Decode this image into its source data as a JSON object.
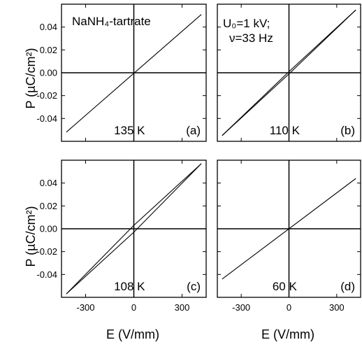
{
  "figure": {
    "ylabel": "P  (µC/cm²)",
    "xlabel": "E  (V/mm)",
    "material": "NaNH₄-tartrate",
    "conditions": [
      "U₀=1 kV;",
      "ν=33 Hz"
    ]
  },
  "chart_data": [
    {
      "type": "line",
      "panel": "(a)",
      "temperature": "135 K",
      "xlim": [
        -450,
        450
      ],
      "ylim": [
        -0.06,
        0.06
      ],
      "xticks": [
        -300,
        0,
        300
      ],
      "yticks": [
        0.04,
        0.02,
        0.0,
        -0.02,
        -0.04
      ],
      "series": [
        {
          "x": [
            -420,
            420
          ],
          "y": [
            -0.052,
            0.051
          ]
        }
      ]
    },
    {
      "type": "line",
      "panel": "(b)",
      "temperature": "110 K",
      "xlim": [
        -450,
        450
      ],
      "ylim": [
        -0.06,
        0.06
      ],
      "xticks": [
        -300,
        0,
        300
      ],
      "yticks": [
        0.04,
        0.02,
        0.0,
        -0.02,
        -0.04
      ],
      "series": [
        {
          "x": [
            -420,
            0,
            420
          ],
          "y": [
            -0.055,
            0.001,
            0.055
          ]
        },
        {
          "x": [
            420,
            0,
            -420
          ],
          "y": [
            0.055,
            -0.001,
            -0.055
          ]
        }
      ]
    },
    {
      "type": "line",
      "panel": "(c)",
      "temperature": "108 K",
      "xlim": [
        -450,
        450
      ],
      "ylim": [
        -0.06,
        0.06
      ],
      "xticks": [
        -300,
        0,
        300
      ],
      "yticks": [
        0.04,
        0.02,
        0.0,
        -0.02,
        -0.04
      ],
      "series": [
        {
          "x": [
            -420,
            0,
            420
          ],
          "y": [
            -0.057,
            -0.003,
            0.057
          ]
        },
        {
          "x": [
            420,
            0,
            -420
          ],
          "y": [
            0.057,
            0.003,
            -0.057
          ]
        }
      ]
    },
    {
      "type": "line",
      "panel": "(d)",
      "temperature": "60 K",
      "xlim": [
        -450,
        450
      ],
      "ylim": [
        -0.06,
        0.06
      ],
      "xticks": [
        -300,
        0,
        300
      ],
      "yticks": [
        0.04,
        0.02,
        0.0,
        -0.02,
        -0.04
      ],
      "series": [
        {
          "x": [
            -420,
            420
          ],
          "y": [
            -0.044,
            0.044
          ]
        }
      ]
    }
  ]
}
